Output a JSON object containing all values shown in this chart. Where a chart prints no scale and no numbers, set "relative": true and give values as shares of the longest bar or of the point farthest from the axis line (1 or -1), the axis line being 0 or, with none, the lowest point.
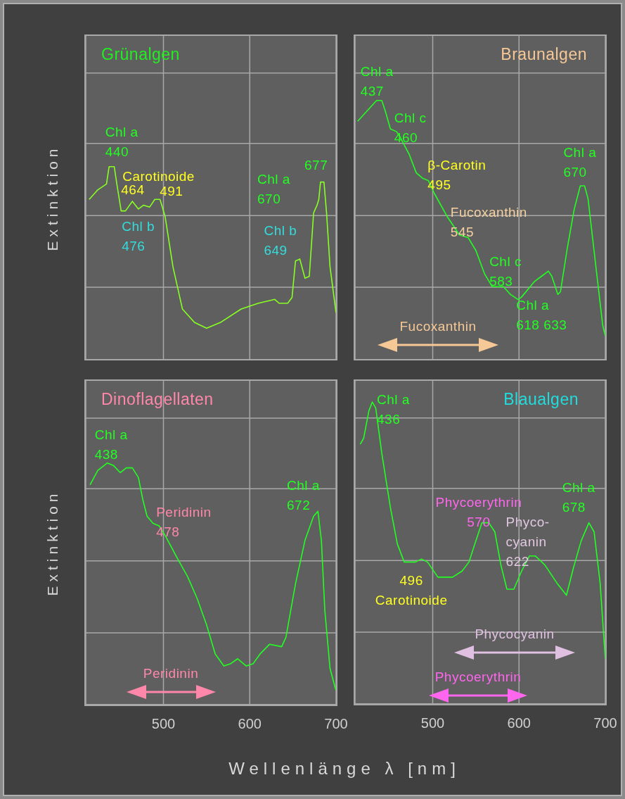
{
  "chart_data": [
    {
      "type": "line",
      "relative": true,
      "title": "Grünalgen",
      "ylabel": "Extinktion",
      "color": "#88ff22",
      "xlim": [
        410,
        700
      ],
      "xticks": [
        500,
        600,
        700
      ],
      "grid": true,
      "tick_labels": false,
      "x": [
        414,
        424,
        434,
        437,
        443,
        446,
        451,
        456,
        464,
        471,
        477,
        484,
        490,
        496,
        502,
        511,
        522,
        536,
        550,
        566,
        590,
        610,
        629,
        634,
        644,
        649,
        653,
        658,
        664,
        669,
        674,
        678,
        680,
        682,
        686,
        689,
        693,
        700
      ],
      "values": [
        0.83,
        0.88,
        0.91,
        1.0,
        1.0,
        0.91,
        0.77,
        0.77,
        0.82,
        0.78,
        0.8,
        0.79,
        0.83,
        0.83,
        0.74,
        0.48,
        0.26,
        0.19,
        0.16,
        0.19,
        0.26,
        0.29,
        0.31,
        0.29,
        0.29,
        0.32,
        0.51,
        0.52,
        0.42,
        0.43,
        0.76,
        0.8,
        0.83,
        0.92,
        0.92,
        0.76,
        0.48,
        0.24
      ],
      "annotations": [
        {
          "text": "Chl a\n440",
          "x": 440,
          "y": 1.0
        },
        {
          "text": "Carotinoide",
          "x": 477,
          "y": 0.8
        },
        {
          "text": "464",
          "x": 464,
          "y": 0.82
        },
        {
          "text": "491",
          "x": 490,
          "y": 0.83
        },
        {
          "text": "Chl b\n476",
          "x": 477,
          "y": 0.8
        },
        {
          "text": "Chl b\n649",
          "x": 658,
          "y": 0.52
        },
        "Chl a\n670",
        "677"
      ]
    },
    {
      "type": "line",
      "relative": true,
      "title": "Braunalgen",
      "color": "#22ff22",
      "xlim": [
        410,
        700
      ],
      "xticks": [
        500,
        600,
        700
      ],
      "grid": true,
      "tick_labels": false,
      "x": [
        413,
        424,
        435,
        441,
        445,
        451,
        458,
        462,
        473,
        481,
        488,
        495,
        502,
        517,
        531,
        541,
        550,
        560,
        569,
        582,
        590,
        599,
        603,
        618,
        626,
        634,
        638,
        645,
        648,
        656,
        664,
        671,
        676,
        680,
        689,
        697,
        700
      ],
      "values": [
        0.92,
        0.96,
        1.0,
        1.0,
        0.96,
        0.89,
        0.88,
        0.86,
        0.79,
        0.72,
        0.7,
        0.69,
        0.64,
        0.55,
        0.48,
        0.47,
        0.42,
        0.33,
        0.28,
        0.28,
        0.25,
        0.23,
        0.24,
        0.3,
        0.32,
        0.34,
        0.32,
        0.25,
        0.26,
        0.43,
        0.58,
        0.67,
        0.67,
        0.62,
        0.36,
        0.13,
        0.09
      ],
      "annotations": [
        {
          "text": "Chl a\n437",
          "x": 435,
          "y": 1.0
        },
        {
          "text": "Chl c\n460",
          "x": 462,
          "y": 0.86
        },
        {
          "text": "β-Carotin\n495",
          "x": 495,
          "y": 0.69
        },
        {
          "text": "Fucoxanthin\n545",
          "x": 541,
          "y": 0.47
        },
        {
          "text": "Chl c\n583",
          "x": 582,
          "y": 0.28
        },
        {
          "text": "Chl a\n618 633",
          "x": 626,
          "y": 0.32
        },
        {
          "text": "Chl a\n670",
          "x": 671,
          "y": 0.67
        },
        "Fucoxanthin"
      ]
    },
    {
      "type": "line",
      "relative": true,
      "title": "Dinoflagellaten",
      "ylabel": "Extinktion",
      "xlabel": "Wellenlänge λ [nm]",
      "color": "#22ff22",
      "xlim": [
        410,
        700
      ],
      "xticks": [
        500,
        600,
        700
      ],
      "grid": true,
      "tick_labels": "x",
      "x": [
        415,
        424,
        435,
        442,
        450,
        457,
        464,
        471,
        476,
        481,
        488,
        495,
        502,
        517,
        528,
        539,
        550,
        560,
        570,
        578,
        586,
        596,
        604,
        612,
        623,
        637,
        642,
        653,
        664,
        674,
        679,
        683,
        687,
        693,
        699,
        700
      ],
      "values": [
        0.91,
        0.97,
        1.0,
        0.99,
        0.96,
        0.98,
        0.98,
        0.94,
        0.85,
        0.78,
        0.75,
        0.74,
        0.7,
        0.6,
        0.53,
        0.44,
        0.33,
        0.21,
        0.16,
        0.17,
        0.19,
        0.16,
        0.17,
        0.21,
        0.25,
        0.24,
        0.28,
        0.5,
        0.68,
        0.78,
        0.8,
        0.68,
        0.39,
        0.15,
        0.07,
        0.06
      ],
      "annotations": [
        {
          "text": "Chl a\n438",
          "x": 435,
          "y": 1.0
        },
        {
          "text": "Peridinin\n478",
          "x": 481,
          "y": 0.78
        },
        "Chl a\n672",
        "Peridinin"
      ]
    },
    {
      "type": "line",
      "relative": true,
      "title": "Blaualgen",
      "color": "#22ff22",
      "xlim": [
        410,
        700
      ],
      "xticks": [
        500,
        600,
        700
      ],
      "grid": true,
      "tick_labels": "x",
      "x": [
        416,
        420,
        426,
        430,
        434,
        441,
        451,
        459,
        467,
        480,
        487,
        494,
        506,
        523,
        534,
        542,
        550,
        557,
        565,
        572,
        579,
        586,
        594,
        603,
        612,
        619,
        630,
        644,
        655,
        663,
        672,
        681,
        687,
        694,
        699,
        700
      ],
      "values": [
        0.86,
        0.88,
        0.97,
        1.0,
        0.98,
        0.83,
        0.65,
        0.53,
        0.47,
        0.47,
        0.48,
        0.47,
        0.42,
        0.42,
        0.44,
        0.47,
        0.54,
        0.6,
        0.6,
        0.57,
        0.46,
        0.38,
        0.38,
        0.44,
        0.49,
        0.49,
        0.46,
        0.4,
        0.36,
        0.45,
        0.54,
        0.6,
        0.57,
        0.4,
        0.19,
        0.15
      ],
      "annotations": [
        "Chl a\n436",
        {
          "text": "496\nCarotinoide",
          "x": 494,
          "y": 0.47
        },
        {
          "text": "Phycoerythrin\n570",
          "x": 572,
          "y": 0.57
        },
        {
          "text": "Phyco-\ncyanin\n622",
          "x": 619,
          "y": 0.49
        },
        {
          "text": "Chl a\n678",
          "x": 681,
          "y": 0.6
        },
        "Phycocyanin",
        "Phycoerythrin"
      ]
    }
  ]
}
